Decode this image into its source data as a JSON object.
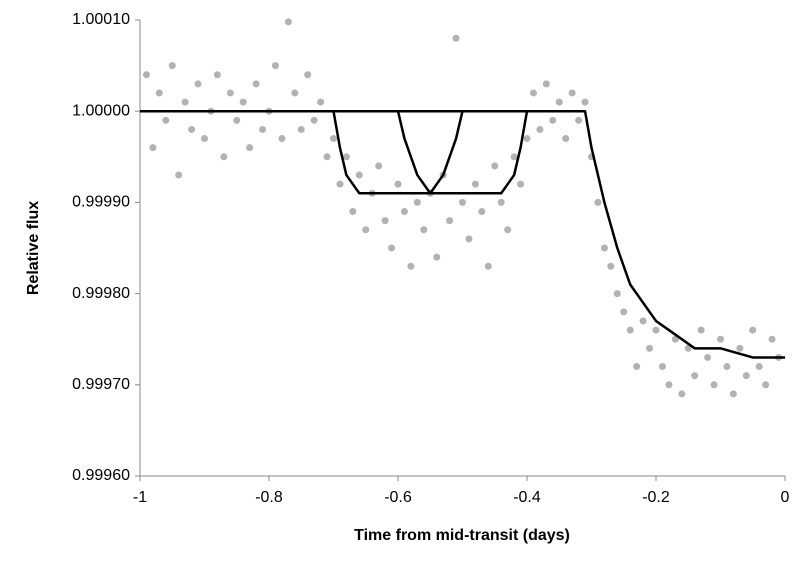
{
  "chart_data": {
    "type": "scatter",
    "x_label": "Time from mid-transit (days)",
    "y_label": "Relative flux",
    "xlim": [
      -1,
      0
    ],
    "xticks": [
      -1,
      -0.8,
      -0.6,
      -0.4,
      -0.2,
      0
    ],
    "ylim": [
      0.9996,
      1.0001
    ],
    "yticks": [
      {
        "value": 0.9996,
        "label": "0.99960"
      },
      {
        "value": 0.9997,
        "label": "0.99970"
      },
      {
        "value": 0.9998,
        "label": "0.99980"
      },
      {
        "value": 0.9999,
        "label": "0.99990"
      },
      {
        "value": 1.0,
        "label": "1.00000"
      },
      {
        "value": 1.0001,
        "label": "1.00010"
      }
    ],
    "grid": false,
    "series": [
      {
        "mode": "markers",
        "color": "#555555",
        "x": [
          -0.99,
          -0.98,
          -0.97,
          -0.96,
          -0.95,
          -0.94,
          -0.93,
          -0.92,
          -0.91,
          -0.9,
          -0.89,
          -0.88,
          -0.87,
          -0.86,
          -0.85,
          -0.84,
          -0.83,
          -0.82,
          -0.81,
          -0.8,
          -0.79,
          -0.78,
          -0.77,
          -0.76,
          -0.75,
          -0.74,
          -0.73,
          -0.72,
          -0.71,
          -0.7,
          -0.69,
          -0.68,
          -0.67,
          -0.66,
          -0.65,
          -0.64,
          -0.63,
          -0.62,
          -0.61,
          -0.6,
          -0.59,
          -0.58,
          -0.57,
          -0.56,
          -0.55,
          -0.54,
          -0.53,
          -0.52,
          -0.51,
          -0.5,
          -0.49,
          -0.48,
          -0.47,
          -0.46,
          -0.45,
          -0.44,
          -0.43,
          -0.42,
          -0.41,
          -0.4,
          -0.39,
          -0.38,
          -0.37,
          -0.36,
          -0.35,
          -0.34,
          -0.33,
          -0.32,
          -0.31,
          -0.3,
          -0.29,
          -0.28,
          -0.27,
          -0.26,
          -0.25,
          -0.24,
          -0.23,
          -0.22,
          -0.21,
          -0.2,
          -0.19,
          -0.18,
          -0.17,
          -0.16,
          -0.15,
          -0.14,
          -0.13,
          -0.12,
          -0.11,
          -0.1,
          -0.09,
          -0.08,
          -0.07,
          -0.06,
          -0.05,
          -0.04,
          -0.03,
          -0.02,
          -0.01
        ],
        "values": [
          1.00004,
          0.99996,
          1.00002,
          0.99999,
          1.00005,
          0.99993,
          1.00001,
          0.99998,
          1.00003,
          0.99997,
          1.0,
          1.00004,
          0.99995,
          1.00002,
          0.99999,
          1.00001,
          0.99996,
          1.00003,
          0.99998,
          1.0,
          1.00005,
          0.99997,
          1.000098,
          1.00002,
          0.99998,
          1.00004,
          0.99999,
          1.00001,
          0.99995,
          0.99997,
          0.99992,
          0.99995,
          0.99989,
          0.99993,
          0.99987,
          0.99991,
          0.99994,
          0.99988,
          0.99985,
          0.99992,
          0.99989,
          0.99983,
          0.9999,
          0.99987,
          0.99991,
          0.99984,
          0.99993,
          0.99988,
          1.00008,
          0.9999,
          0.99986,
          0.99992,
          0.99989,
          0.99983,
          0.99994,
          0.9999,
          0.99987,
          0.99995,
          0.99992,
          0.99997,
          1.00002,
          0.99998,
          1.00003,
          0.99999,
          1.00001,
          0.99997,
          1.00002,
          0.99999,
          1.00001,
          0.99995,
          0.9999,
          0.99985,
          0.99983,
          0.9998,
          0.99978,
          0.99976,
          0.99972,
          0.99977,
          0.99974,
          0.99976,
          0.99972,
          0.9997,
          0.99975,
          0.99969,
          0.99974,
          0.99971,
          0.99976,
          0.99973,
          0.9997,
          0.99975,
          0.99972,
          0.99969,
          0.99974,
          0.99971,
          0.99976,
          0.99972,
          0.9997,
          0.99975,
          0.99973
        ]
      },
      {
        "mode": "line",
        "color": "#000000",
        "x": [
          -1,
          -0.32,
          -0.31,
          -0.3,
          -0.28,
          -0.26,
          -0.24,
          -0.22,
          -0.2,
          -0.18,
          -0.16,
          -0.14,
          -0.12,
          -0.1,
          -0.05,
          0
        ],
        "values": [
          1.0,
          1.0,
          1.0,
          0.99996,
          0.9999,
          0.99985,
          0.99981,
          0.99979,
          0.99977,
          0.99976,
          0.99975,
          0.99974,
          0.99974,
          0.99974,
          0.99973,
          0.99973
        ]
      },
      {
        "mode": "line",
        "color": "#000000",
        "x": [
          -0.7,
          -0.69,
          -0.68,
          -0.67,
          -0.66,
          -0.44,
          -0.43,
          -0.42,
          -0.41,
          -0.4
        ],
        "values": [
          1.0,
          0.99996,
          0.99993,
          0.99992,
          0.99991,
          0.99991,
          0.99992,
          0.99993,
          0.99996,
          1.0
        ]
      },
      {
        "mode": "line",
        "color": "#000000",
        "x": [
          -0.6,
          -0.59,
          -0.58,
          -0.57,
          -0.56,
          -0.55,
          -0.54,
          -0.53,
          -0.52,
          -0.51,
          -0.5
        ],
        "values": [
          1.0,
          0.99997,
          0.99995,
          0.99993,
          0.99992,
          0.99991,
          0.99992,
          0.99993,
          0.99995,
          0.99997,
          1.0
        ]
      }
    ]
  }
}
